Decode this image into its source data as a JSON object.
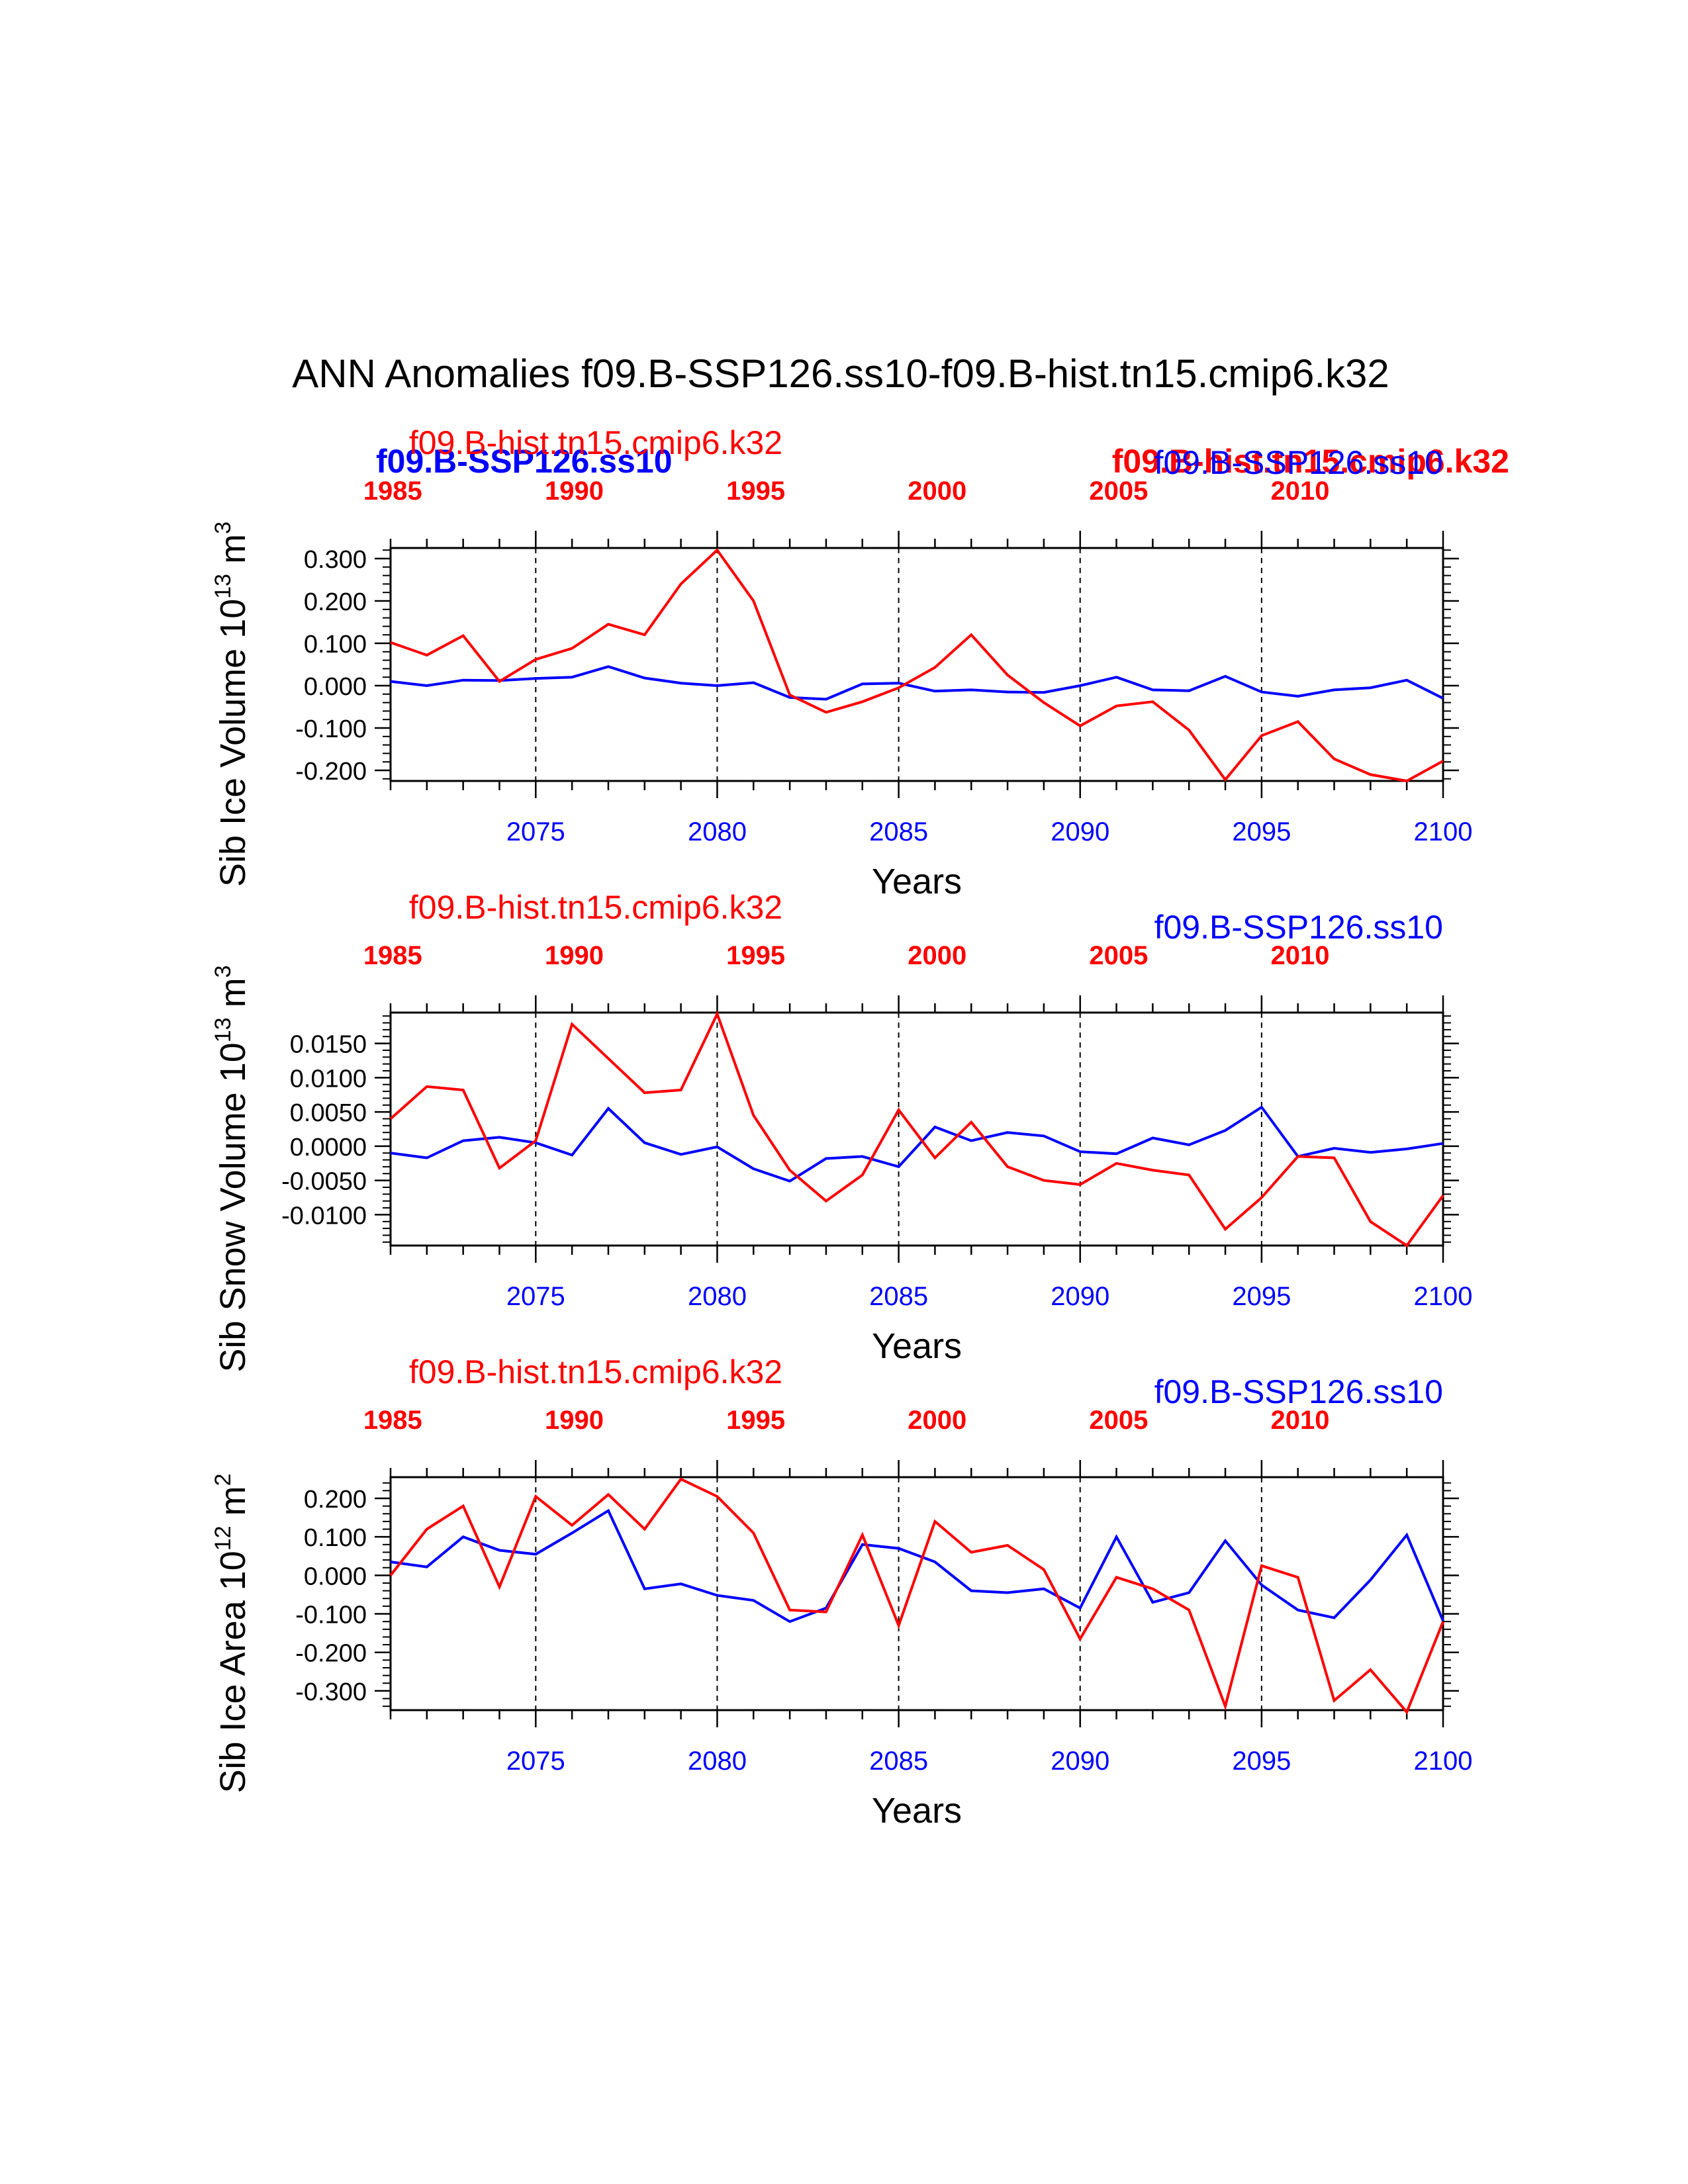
{
  "title": "ANN Anomalies f09.B-SSP126.ss10-f09.B-hist.tn15.cmip6.k32",
  "colors": {
    "hist": "#ff0000",
    "ssp": "#0000ff",
    "axis": "#000000"
  },
  "overlay_labels": {
    "ssp_bold": "f09.B-SSP126.ss10",
    "hist_bold": "f09.B-hist.tn15.cmip6.k32"
  },
  "chart_data": [
    {
      "type": "line",
      "panel": "ice-volume",
      "ylabel": "Sib Ice Volume 10^13 m^3",
      "ylabel_base": "Sib Ice Volume 10",
      "ylabel_exp": "13",
      "ylabel_unit": "m",
      "ylabel_unit_exp": "3",
      "xlabel": "Years",
      "ylim": [
        -0.225,
        0.325
      ],
      "yticks": [
        0.3,
        0.2,
        0.1,
        0.0,
        -0.1,
        -0.2
      ],
      "ytick_labels": [
        "0.300",
        "0.200",
        "0.100",
        "0.000",
        "-0.100",
        "-0.200"
      ],
      "yminor_step": 0.02,
      "bottom_ticks": [
        "2075",
        "2080",
        "2085",
        "2090",
        "2095",
        "2100"
      ],
      "top_ticks": [
        "1985",
        "1990",
        "1995",
        "2000",
        "2005",
        "2010"
      ],
      "legend_hist": "f09.B-hist.tn15.cmip6.k32",
      "legend_ssp": "f09.B-SSP126.ss10",
      "series": [
        {
          "name": "f09.B-SSP126.ss10",
          "x_start": 2071,
          "values": [
            0.01,
            0.0,
            0.013,
            0.012,
            0.017,
            0.02,
            0.045,
            0.018,
            0.006,
            0.0,
            0.007,
            -0.028,
            -0.032,
            0.004,
            0.006,
            -0.013,
            -0.01,
            -0.015,
            -0.016,
            0.0,
            0.02,
            -0.01,
            -0.012,
            0.022,
            -0.015,
            -0.025,
            -0.01,
            -0.005,
            0.013,
            -0.03
          ]
        },
        {
          "name": "f09.B-hist.tn15.cmip6.k32",
          "x_start": 1985,
          "values": [
            0.102,
            0.072,
            0.118,
            0.01,
            0.062,
            0.088,
            0.145,
            0.12,
            0.24,
            0.32,
            0.2,
            -0.022,
            -0.063,
            -0.038,
            -0.005,
            0.043,
            0.12,
            0.025,
            -0.04,
            -0.095,
            -0.048,
            -0.038,
            -0.105,
            -0.222,
            -0.118,
            -0.085,
            -0.173,
            -0.21,
            -0.225,
            -0.178
          ]
        }
      ]
    },
    {
      "type": "line",
      "panel": "snow-volume",
      "ylabel": "Sib Snow Volume 10^13 m^3",
      "ylabel_base": "Sib Snow Volume 10",
      "ylabel_exp": "13",
      "ylabel_unit": "m",
      "ylabel_unit_exp": "3",
      "xlabel": "Years",
      "ylim": [
        -0.0145,
        0.0195
      ],
      "yticks": [
        0.015,
        0.01,
        0.005,
        0.0,
        -0.005,
        -0.01
      ],
      "ytick_labels": [
        "0.0150",
        "0.0100",
        "0.0050",
        "0.0000",
        "-0.0050",
        "-0.0100"
      ],
      "yminor_step": 0.001,
      "bottom_ticks": [
        "2075",
        "2080",
        "2085",
        "2090",
        "2095",
        "2100"
      ],
      "top_ticks": [
        "1985",
        "1990",
        "1995",
        "2000",
        "2005",
        "2010"
      ],
      "legend_hist": "f09.B-hist.tn15.cmip6.k32",
      "legend_ssp": "f09.B-SSP126.ss10",
      "series": [
        {
          "name": "f09.B-SSP126.ss10",
          "x_start": 2071,
          "values": [
            -0.001,
            -0.0017,
            0.0008,
            0.0013,
            0.0005,
            -0.0013,
            0.0055,
            0.0005,
            -0.0012,
            -0.0001,
            -0.0033,
            -0.0051,
            -0.0018,
            -0.0015,
            -0.003,
            0.0028,
            0.0008,
            0.002,
            0.0015,
            -0.0008,
            -0.0011,
            0.0012,
            0.0002,
            0.0023,
            0.0057,
            -0.0015,
            -0.0003,
            -0.0009,
            -0.0004,
            0.0004
          ]
        },
        {
          "name": "f09.B-hist.tn15.cmip6.k32",
          "x_start": 1985,
          "values": [
            0.004,
            0.0087,
            0.0082,
            -0.0032,
            0.0008,
            0.0178,
            0.0128,
            0.0078,
            0.0082,
            0.0193,
            0.0045,
            -0.0035,
            -0.008,
            -0.0042,
            0.0053,
            -0.0017,
            0.0035,
            -0.003,
            -0.005,
            -0.0056,
            -0.0025,
            -0.0035,
            -0.0042,
            -0.0121,
            -0.0075,
            -0.0015,
            -0.0017,
            -0.011,
            -0.0145,
            -0.0072
          ]
        }
      ]
    },
    {
      "type": "line",
      "panel": "ice-area",
      "ylabel": "Sib Ice Area 10^12 m^2",
      "ylabel_base": "Sib Ice Area 10",
      "ylabel_exp": "12",
      "ylabel_unit": "m",
      "ylabel_unit_exp": "2",
      "xlabel": "Years",
      "ylim": [
        -0.35,
        0.255
      ],
      "yticks": [
        0.2,
        0.1,
        0.0,
        -0.1,
        -0.2,
        -0.3
      ],
      "ytick_labels": [
        "0.200",
        "0.100",
        "0.000",
        "-0.100",
        "-0.200",
        "-0.300"
      ],
      "yminor_step": 0.02,
      "bottom_ticks": [
        "2075",
        "2080",
        "2085",
        "2090",
        "2095",
        "2100"
      ],
      "top_ticks": [
        "1985",
        "1990",
        "1995",
        "2000",
        "2005",
        "2010"
      ],
      "legend_hist": "f09.B-hist.tn15.cmip6.k32",
      "legend_ssp": "f09.B-SSP126.ss10",
      "series": [
        {
          "name": "f09.B-SSP126.ss10",
          "x_start": 2071,
          "values": [
            0.035,
            0.022,
            0.1,
            0.065,
            0.055,
            0.11,
            0.168,
            -0.035,
            -0.022,
            -0.052,
            -0.065,
            -0.12,
            -0.085,
            0.08,
            0.07,
            0.035,
            -0.04,
            -0.045,
            -0.035,
            -0.085,
            0.1,
            -0.07,
            -0.045,
            0.09,
            -0.025,
            -0.09,
            -0.11,
            -0.012,
            0.105,
            -0.118
          ]
        },
        {
          "name": "f09.B-hist.tn15.cmip6.k32",
          "x_start": 1985,
          "values": [
            0.0,
            0.12,
            0.18,
            -0.03,
            0.205,
            0.13,
            0.21,
            0.12,
            0.25,
            0.205,
            0.11,
            -0.09,
            -0.095,
            0.105,
            -0.13,
            0.14,
            0.06,
            0.078,
            0.015,
            -0.165,
            -0.005,
            -0.035,
            -0.09,
            -0.34,
            0.025,
            -0.005,
            -0.325,
            -0.245,
            -0.355,
            -0.12
          ]
        }
      ]
    }
  ]
}
